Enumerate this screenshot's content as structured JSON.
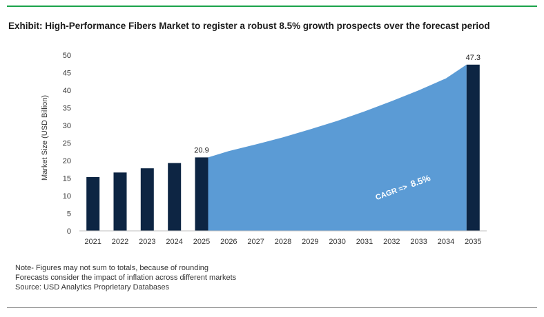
{
  "title": "Exhibit: High-Performance Fibers Market to register a robust 8.5% growth prospects over the forecast period",
  "notes": [
    "Note- Figures may not sum to totals, because of rounding",
    "Forecasts consider the impact of inflation across different markets",
    "Source: USD Analytics Proprietary Databases"
  ],
  "colors": {
    "bar": "#0d2543",
    "area": "#5b9bd5",
    "top_rule": "#1aa34a",
    "bottom_rule": "#8a8a8a"
  },
  "chart_data": {
    "type": "bar",
    "ylabel": "Market Size (USD Billion)",
    "xlabel": "",
    "ylim": [
      0,
      50
    ],
    "yticks": [
      0,
      5,
      10,
      15,
      20,
      25,
      30,
      35,
      40,
      45,
      50
    ],
    "grid": false,
    "categories": [
      "2021",
      "2022",
      "2023",
      "2024",
      "2025",
      "2026",
      "2027",
      "2028",
      "2029",
      "2030",
      "2031",
      "2032",
      "2033",
      "2034",
      "2035"
    ],
    "bars": [
      {
        "x": "2021",
        "value": 15.3
      },
      {
        "x": "2022",
        "value": 16.6
      },
      {
        "x": "2023",
        "value": 17.8
      },
      {
        "x": "2024",
        "value": 19.3
      },
      {
        "x": "2025",
        "value": 20.9,
        "label": "20.9"
      },
      {
        "x": "2035",
        "value": 47.3,
        "label": "47.3"
      }
    ],
    "forecast_area": {
      "x": [
        "2025",
        "2026",
        "2027",
        "2028",
        "2029",
        "2030",
        "2031",
        "2032",
        "2033",
        "2034",
        "2035"
      ],
      "values": [
        20.9,
        22.7,
        24.6,
        26.6,
        28.9,
        31.3,
        34.0,
        36.9,
        40.0,
        43.4,
        47.3
      ]
    },
    "annotation": {
      "prefix": "CAGR =>",
      "value": "8.5%"
    }
  }
}
